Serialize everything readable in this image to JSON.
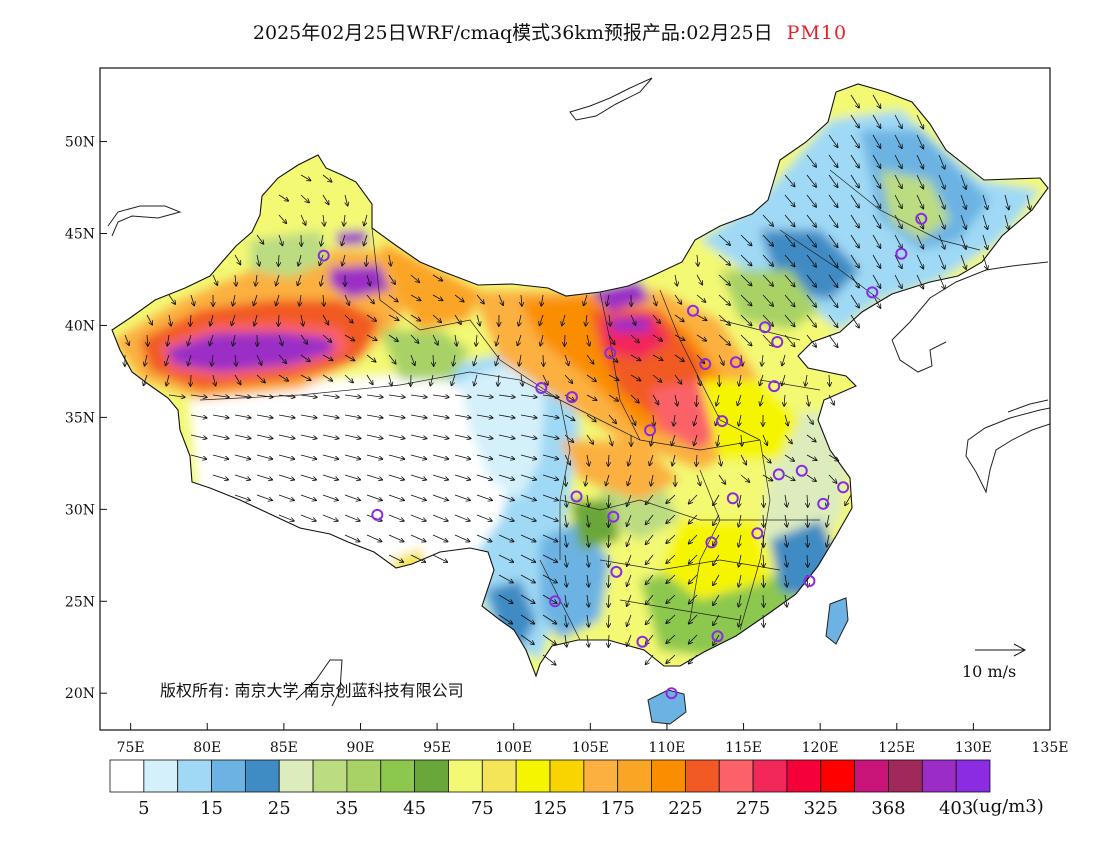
{
  "title": {
    "main": "2025年02月25日WRF/cmaq模式36km预报产品:02月25日",
    "pollutant": "PM10"
  },
  "map": {
    "lon_range": [
      73,
      135
    ],
    "lat_range": [
      18,
      54
    ],
    "lat_ticks": [
      {
        "value": 50,
        "label": "50N"
      },
      {
        "value": 45,
        "label": "45N"
      },
      {
        "value": 40,
        "label": "40N"
      },
      {
        "value": 35,
        "label": "35N"
      },
      {
        "value": 30,
        "label": "30N"
      },
      {
        "value": 25,
        "label": "25N"
      },
      {
        "value": 20,
        "label": "20N"
      }
    ],
    "lon_ticks": [
      {
        "value": 75,
        "label": "75E"
      },
      {
        "value": 80,
        "label": "80E"
      },
      {
        "value": 85,
        "label": "85E"
      },
      {
        "value": 90,
        "label": "90E"
      },
      {
        "value": 95,
        "label": "95E"
      },
      {
        "value": 100,
        "label": "100E"
      },
      {
        "value": 105,
        "label": "105E"
      },
      {
        "value": 110,
        "label": "110E"
      },
      {
        "value": 115,
        "label": "115E"
      },
      {
        "value": 120,
        "label": "120E"
      },
      {
        "value": 125,
        "label": "125E"
      },
      {
        "value": 130,
        "label": "130E"
      },
      {
        "value": 135,
        "label": "135E"
      }
    ],
    "copyright": "版权所有: 南京大学 南京创蓝科技有限公司",
    "wind_scale": "10 m/s",
    "cities": [
      {
        "lon": 87.6,
        "lat": 43.8
      },
      {
        "lon": 91.1,
        "lat": 29.7
      },
      {
        "lon": 101.8,
        "lat": 36.6
      },
      {
        "lon": 103.8,
        "lat": 36.1
      },
      {
        "lon": 106.3,
        "lat": 38.5
      },
      {
        "lon": 111.7,
        "lat": 40.8
      },
      {
        "lon": 108.9,
        "lat": 34.3
      },
      {
        "lon": 112.5,
        "lat": 37.9
      },
      {
        "lon": 114.5,
        "lat": 38.0
      },
      {
        "lon": 116.4,
        "lat": 39.9
      },
      {
        "lon": 117.2,
        "lat": 39.1
      },
      {
        "lon": 113.6,
        "lat": 34.8
      },
      {
        "lon": 117.0,
        "lat": 36.7
      },
      {
        "lon": 117.3,
        "lat": 31.9
      },
      {
        "lon": 118.8,
        "lat": 32.1
      },
      {
        "lon": 121.5,
        "lat": 31.2
      },
      {
        "lon": 120.2,
        "lat": 30.3
      },
      {
        "lon": 114.3,
        "lat": 30.6
      },
      {
        "lon": 112.9,
        "lat": 28.2
      },
      {
        "lon": 115.9,
        "lat": 28.7
      },
      {
        "lon": 119.3,
        "lat": 26.1
      },
      {
        "lon": 113.3,
        "lat": 23.1
      },
      {
        "lon": 108.4,
        "lat": 22.8
      },
      {
        "lon": 110.3,
        "lat": 20.0
      },
      {
        "lon": 106.7,
        "lat": 26.6
      },
      {
        "lon": 102.7,
        "lat": 25.0
      },
      {
        "lon": 104.1,
        "lat": 30.7
      },
      {
        "lon": 106.5,
        "lat": 29.6
      },
      {
        "lon": 123.4,
        "lat": 41.8
      },
      {
        "lon": 125.3,
        "lat": 43.9
      },
      {
        "lon": 126.6,
        "lat": 45.8
      }
    ]
  },
  "colorbar": {
    "colors": [
      "#ffffff",
      "#d4f0fa",
      "#9fd9f5",
      "#6cb3e3",
      "#3f8bc4",
      "#dcecbd",
      "#bcdc82",
      "#a8d266",
      "#8cc84e",
      "#6aa73a",
      "#f3f973",
      "#f4e457",
      "#f5f500",
      "#fad400",
      "#fbb040",
      "#fba525",
      "#fa8e00",
      "#f15a24",
      "#fb6268",
      "#f2285b",
      "#f50039",
      "#ff0000",
      "#c9147a",
      "#a1285a",
      "#9b2dc6",
      "#8b2be2"
    ],
    "labels": [
      "5",
      "15",
      "25",
      "35",
      "45",
      "75",
      "125",
      "175",
      "225",
      "275",
      "325",
      "368",
      "403"
    ],
    "unit": "(ug/m3)"
  }
}
